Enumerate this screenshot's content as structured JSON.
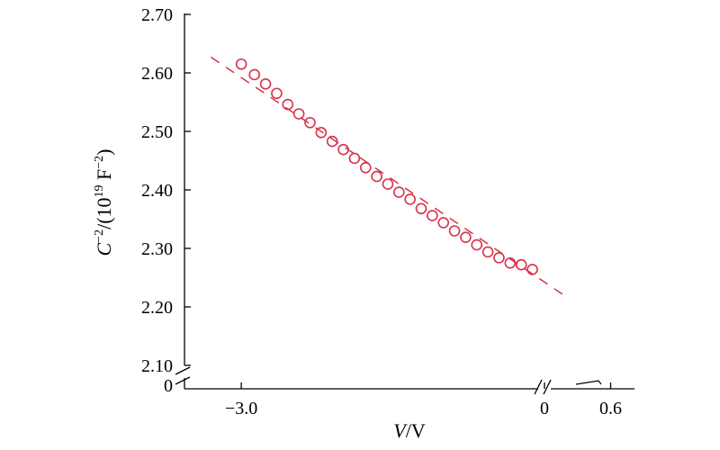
{
  "chart_data": {
    "type": "scatter",
    "title": "",
    "xlabel_var": "V",
    "xlabel_unit": "/V",
    "ylabel_main": "C",
    "ylabel_sup": "−2",
    "ylabel_rest": "/(10",
    "ylabel_exp": "19",
    "ylabel_unit": " F",
    "ylabel_unit_sup": "−2",
    "ylabel_close": ")",
    "y_ticks": [
      "2.10",
      "2.20",
      "2.30",
      "2.40",
      "2.50",
      "2.60",
      "2.70"
    ],
    "y_tick_values": [
      2.1,
      2.2,
      2.3,
      2.4,
      2.5,
      2.6,
      2.7
    ],
    "y_zero_label": "0",
    "x_ticks": [
      "−3.0",
      "0",
      "0.6"
    ],
    "x_tick_values": [
      -3.0,
      0,
      0.6
    ],
    "ylim": [
      2.1,
      2.7
    ],
    "xlim": [
      -3.6,
      1.0
    ],
    "axis_breaks": [
      "x-between-0-and-0.6",
      "y-between-0-and-2.10"
    ],
    "grid": false,
    "series": [
      {
        "marker": "open-circle",
        "color": "#d6324a",
        "x": [
          -3.0,
          -2.87,
          -2.76,
          -2.65,
          -2.54,
          -2.43,
          -2.32,
          -2.21,
          -2.1,
          -1.99,
          -1.88,
          -1.77,
          -1.66,
          -1.55,
          -1.44,
          -1.33,
          -1.22,
          -1.11,
          -1.0,
          -0.89,
          -0.78,
          -0.67,
          -0.56,
          -0.45,
          -0.34,
          -0.23,
          -0.12
        ],
        "y": [
          2.615,
          2.597,
          2.581,
          2.565,
          2.546,
          2.53,
          2.515,
          2.498,
          2.483,
          2.469,
          2.454,
          2.438,
          2.423,
          2.41,
          2.396,
          2.384,
          2.368,
          2.356,
          2.344,
          2.33,
          2.319,
          2.306,
          2.294,
          2.284,
          2.275,
          2.272,
          2.264
        ]
      }
    ],
    "fit_line": {
      "style": "dashed",
      "color": "#d6324a",
      "x": [
        -3.3,
        0.2
      ],
      "y": [
        2.627,
        2.217
      ]
    }
  }
}
